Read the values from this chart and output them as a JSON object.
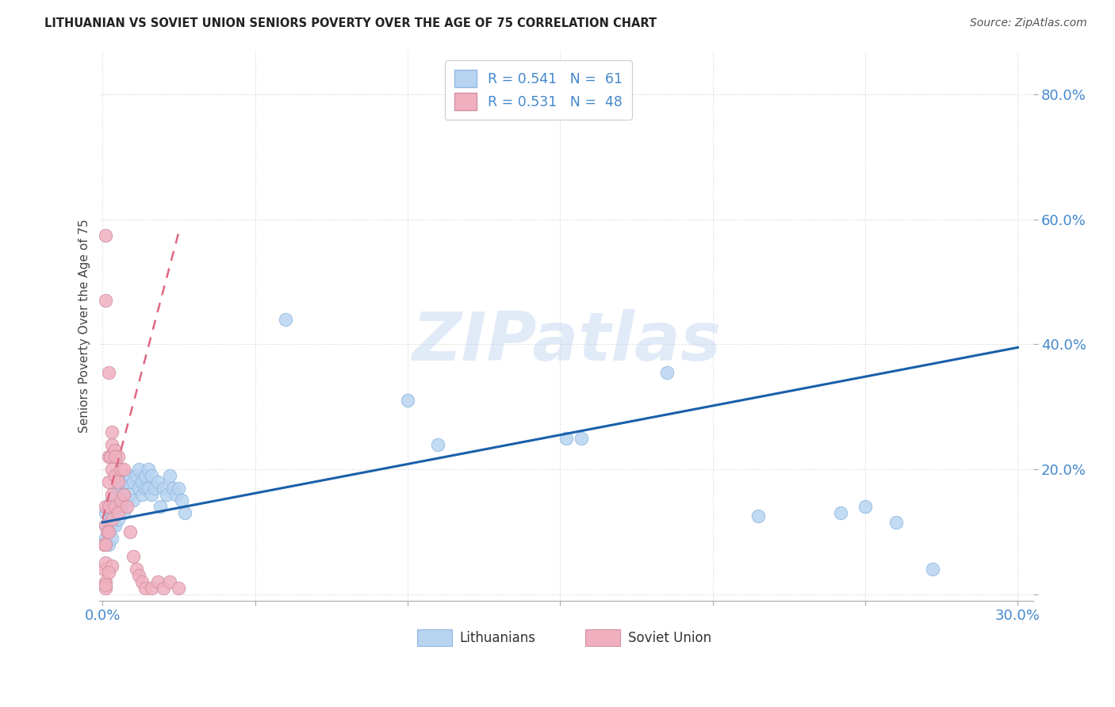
{
  "title": "LITHUANIAN VS SOVIET UNION SENIORS POVERTY OVER THE AGE OF 75 CORRELATION CHART",
  "source": "Source: ZipAtlas.com",
  "ylabel": "Seniors Poverty Over the Age of 75",
  "background_color": "#ffffff",
  "grid_color": "#e0e0e0",
  "lit_color": "#b8d4f0",
  "lit_edge_color": "#90b8e0",
  "sov_color": "#f0b0c0",
  "sov_edge_color": "#d090a0",
  "lit_line_color": "#1a5faa",
  "sov_line_color": "#e06880",
  "axis_color": "#4488cc",
  "title_color": "#222222",
  "source_color": "#555555",
  "lit_R": 0.541,
  "lit_N": 61,
  "sov_R": 0.531,
  "sov_N": 48,
  "xlim": [
    -0.001,
    0.305
  ],
  "ylim": [
    -0.01,
    0.87
  ],
  "xtick_vals": [
    0.0,
    0.05,
    0.1,
    0.15,
    0.2,
    0.25,
    0.3
  ],
  "xtick_labels": [
    "0.0%",
    "",
    "",
    "",
    "",
    "",
    "30.0%"
  ],
  "ytick_vals": [
    0.0,
    0.2,
    0.4,
    0.6,
    0.8
  ],
  "ytick_labels": [
    "",
    "20.0%",
    "40.0%",
    "60.0%",
    "80.0%"
  ],
  "legend_labels": [
    "Lithuanians",
    "Soviet Union"
  ],
  "watermark_text": "ZIPatlas",
  "lit_x": [
    0.001,
    0.001,
    0.001,
    0.002,
    0.002,
    0.002,
    0.002,
    0.003,
    0.003,
    0.003,
    0.003,
    0.004,
    0.004,
    0.004,
    0.005,
    0.005,
    0.005,
    0.006,
    0.006,
    0.007,
    0.007,
    0.007,
    0.008,
    0.008,
    0.009,
    0.009,
    0.01,
    0.01,
    0.011,
    0.012,
    0.012,
    0.013,
    0.013,
    0.014,
    0.014,
    0.015,
    0.015,
    0.016,
    0.016,
    0.017,
    0.018,
    0.019,
    0.02,
    0.021,
    0.022,
    0.023,
    0.024,
    0.025,
    0.026,
    0.027,
    0.06,
    0.1,
    0.11,
    0.152,
    0.157,
    0.185,
    0.215,
    0.242,
    0.25,
    0.26,
    0.272
  ],
  "lit_y": [
    0.13,
    0.11,
    0.09,
    0.14,
    0.12,
    0.1,
    0.08,
    0.15,
    0.13,
    0.11,
    0.09,
    0.16,
    0.13,
    0.11,
    0.17,
    0.14,
    0.12,
    0.17,
    0.14,
    0.18,
    0.16,
    0.13,
    0.18,
    0.15,
    0.19,
    0.16,
    0.18,
    0.15,
    0.19,
    0.2,
    0.17,
    0.18,
    0.16,
    0.19,
    0.17,
    0.2,
    0.17,
    0.19,
    0.16,
    0.17,
    0.18,
    0.14,
    0.17,
    0.16,
    0.19,
    0.17,
    0.16,
    0.17,
    0.15,
    0.13,
    0.44,
    0.31,
    0.24,
    0.25,
    0.25,
    0.355,
    0.125,
    0.13,
    0.14,
    0.115,
    0.04
  ],
  "sov_x": [
    0.0005,
    0.0005,
    0.001,
    0.001,
    0.001,
    0.001,
    0.001,
    0.001,
    0.0015,
    0.002,
    0.002,
    0.002,
    0.002,
    0.0025,
    0.003,
    0.003,
    0.003,
    0.003,
    0.004,
    0.004,
    0.004,
    0.005,
    0.005,
    0.005,
    0.006,
    0.006,
    0.007,
    0.007,
    0.008,
    0.009,
    0.01,
    0.011,
    0.012,
    0.013,
    0.014,
    0.016,
    0.018,
    0.02,
    0.022,
    0.025,
    0.001,
    0.001,
    0.002,
    0.003,
    0.004,
    0.003,
    0.002,
    0.001
  ],
  "sov_y": [
    0.08,
    0.04,
    0.14,
    0.11,
    0.08,
    0.05,
    0.02,
    0.01,
    0.1,
    0.22,
    0.18,
    0.14,
    0.1,
    0.22,
    0.24,
    0.2,
    0.16,
    0.12,
    0.23,
    0.19,
    0.14,
    0.22,
    0.18,
    0.13,
    0.2,
    0.15,
    0.2,
    0.16,
    0.14,
    0.1,
    0.06,
    0.04,
    0.03,
    0.02,
    0.01,
    0.01,
    0.02,
    0.01,
    0.02,
    0.01,
    0.575,
    0.47,
    0.355,
    0.26,
    0.22,
    0.045,
    0.035,
    0.015
  ],
  "lit_line_x0": 0.0,
  "lit_line_x1": 0.3,
  "lit_line_y0": 0.115,
  "lit_line_y1": 0.395,
  "sov_line_x0": 0.0,
  "sov_line_x1": 0.025,
  "sov_line_y0": 0.12,
  "sov_line_y1": 0.58
}
